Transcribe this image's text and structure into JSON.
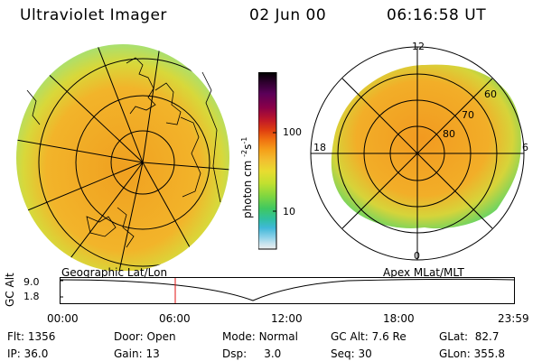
{
  "header": {
    "instrument": "Ultraviolet Imager",
    "date": "02 Jun 00",
    "time": "06:16:58 UT"
  },
  "left_panel": {
    "label": "Geographic Lat/Lon"
  },
  "right_panel": {
    "label": "Apex MLat/MLT",
    "mlt_labels": {
      "top": "12",
      "right": "6",
      "bottom": "0",
      "left": "18"
    },
    "mlat_labels": [
      "60",
      "70",
      "80"
    ]
  },
  "colorbar": {
    "unit_label": "photon cm",
    "unit_sup1": "-2",
    "unit_mid": "s",
    "unit_sup2": "-1",
    "ticks": [
      "100",
      "10"
    ],
    "colors": [
      "#000000",
      "#300030",
      "#5a0058",
      "#8a0048",
      "#b00028",
      "#d21010",
      "#e84010",
      "#f07010",
      "#f5a01a",
      "#f2c030",
      "#e8dc30",
      "#c0e030",
      "#80d640",
      "#40c860",
      "#30c0a0",
      "#40b8d8",
      "#88d0e8",
      "#c8e4ee",
      "#eeeeee"
    ]
  },
  "timeline": {
    "axis_label": "GC Alt",
    "y_ticks": [
      "9.0",
      "1.8"
    ],
    "x_ticks": [
      "00:00",
      "06:00",
      "12:00",
      "18:00",
      "23:59"
    ],
    "marker_time": "06:16:58"
  },
  "info": {
    "flt_label": "Flt:",
    "flt_value": "1356",
    "ip_label": "IP:",
    "ip_value": "36.0",
    "door_label": "Door:",
    "door_value": "Open",
    "gain_label": "Gain:",
    "gain_value": "13",
    "mode_label": "Mode:",
    "mode_value": "Normal",
    "dsp_label": "Dsp:",
    "dsp_value": "3.0",
    "gcalt_label": "GC Alt:",
    "gcalt_value": "7.6 Re",
    "seq_label": "Seq:",
    "seq_value": "30",
    "glat_label": "GLat:",
    "glat_value": "82.7",
    "glon_label": "GLon:",
    "glon_value": "355.8"
  }
}
